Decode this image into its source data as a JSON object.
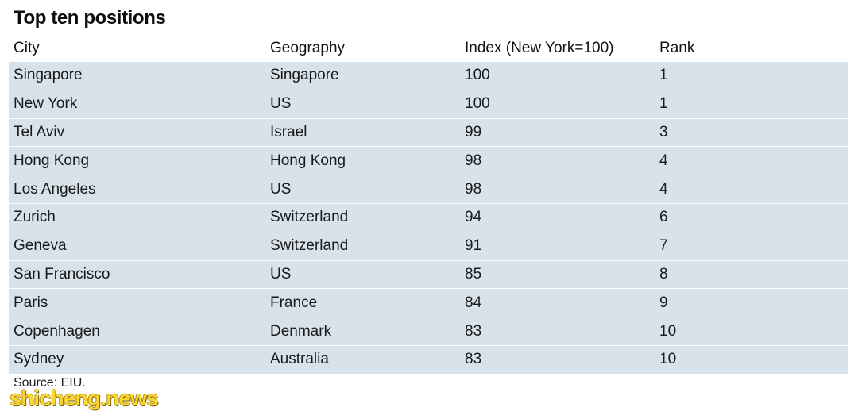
{
  "chart_data": {
    "type": "table",
    "title": "Top ten positions",
    "columns": [
      "City",
      "Geography",
      "Index (New York=100)",
      "Rank"
    ],
    "rows": [
      [
        "Singapore",
        "Singapore",
        "100",
        "1"
      ],
      [
        "New York",
        "US",
        "100",
        "1"
      ],
      [
        "Tel Aviv",
        "Israel",
        "99",
        "3"
      ],
      [
        "Hong Kong",
        "Hong Kong",
        "98",
        "4"
      ],
      [
        "Los Angeles",
        "US",
        "98",
        "4"
      ],
      [
        "Zurich",
        "Switzerland",
        "94",
        "6"
      ],
      [
        "Geneva",
        "Switzerland",
        "91",
        "7"
      ],
      [
        "San Francisco",
        "US",
        "85",
        "8"
      ],
      [
        "Paris",
        "France",
        "84",
        "9"
      ],
      [
        "Copenhagen",
        "Denmark",
        "83",
        "10"
      ],
      [
        "Sydney",
        "Australia",
        "83",
        "10"
      ]
    ],
    "source": "Source: EIU."
  },
  "watermark": "shicheng.news",
  "colors": {
    "row_fill": "#d7e2ea",
    "watermark": "#ffd21f"
  }
}
